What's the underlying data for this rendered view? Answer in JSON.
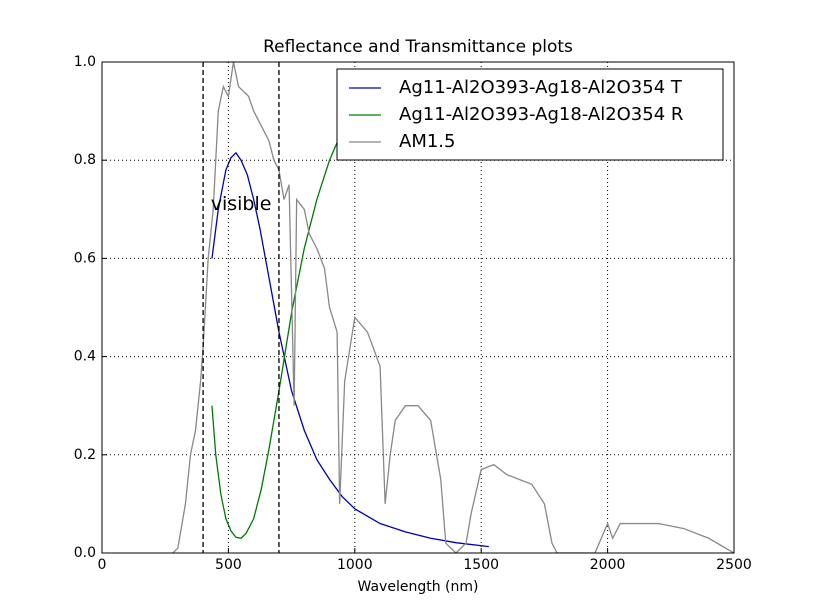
{
  "chart_data": {
    "type": "line",
    "title": "Reflectance and Transmittance plots",
    "x_label": "Wavelength (nm)",
    "xlim": [
      0,
      2500
    ],
    "xticks": [
      0,
      500,
      1000,
      1500,
      2000,
      2500
    ],
    "ylim": [
      0,
      1
    ],
    "yticks": [
      {
        "value": 0,
        "label": "0.0"
      },
      {
        "value": 0.2,
        "label": "0.2"
      },
      {
        "value": 0.4,
        "label": "0.4"
      },
      {
        "value": 0.6,
        "label": "0.6"
      },
      {
        "value": 0.8,
        "label": "0.8"
      },
      {
        "value": 1,
        "label": "1.0"
      }
    ],
    "grid": true,
    "legend": "upper right",
    "vlines": [
      400,
      700
    ],
    "annotation": {
      "text": "visible",
      "x": 430,
      "y": 0.71
    },
    "series": [
      {
        "name": "Ag11-Al2O393-Ag18-Al2O354 T",
        "color": "#0000b0",
        "x": [
          435,
          460,
          490,
          510,
          530,
          550,
          575,
          600,
          625,
          650,
          675,
          700,
          725,
          750,
          800,
          850,
          900,
          950,
          1000,
          1100,
          1200,
          1300,
          1400,
          1530
        ],
        "values": [
          0.6,
          0.7,
          0.78,
          0.805,
          0.815,
          0.8,
          0.77,
          0.72,
          0.66,
          0.59,
          0.52,
          0.45,
          0.39,
          0.33,
          0.25,
          0.19,
          0.15,
          0.115,
          0.09,
          0.06,
          0.043,
          0.03,
          0.021,
          0.013
        ]
      },
      {
        "name": "Ag11-Al2O393-Ag18-Al2O354 R",
        "color": "#007a00",
        "x": [
          435,
          450,
          470,
          490,
          510,
          530,
          550,
          570,
          600,
          630,
          660,
          700,
          750,
          800,
          850,
          900,
          950,
          1000,
          1100,
          1200,
          1300,
          1400,
          1530
        ],
        "values": [
          0.3,
          0.2,
          0.12,
          0.07,
          0.045,
          0.032,
          0.03,
          0.04,
          0.07,
          0.13,
          0.21,
          0.33,
          0.49,
          0.62,
          0.72,
          0.8,
          0.86,
          0.9,
          0.93,
          0.95,
          0.96,
          0.97,
          0.975
        ]
      },
      {
        "name": "AM1.5",
        "color": "#888888",
        "x": [
          280,
          300,
          330,
          350,
          370,
          390,
          400,
          420,
          440,
          460,
          480,
          500,
          520,
          540,
          560,
          580,
          600,
          620,
          660,
          680,
          700,
          720,
          740,
          760,
          770,
          800,
          820,
          850,
          880,
          900,
          930,
          940,
          960,
          1000,
          1050,
          1100,
          1120,
          1140,
          1160,
          1200,
          1250,
          1300,
          1340,
          1360,
          1400,
          1440,
          1460,
          1500,
          1550,
          1600,
          1700,
          1750,
          1780,
          1800,
          1950,
          2000,
          2020,
          2050,
          2100,
          2200,
          2300,
          2400,
          2500
        ],
        "values": [
          0,
          0.01,
          0.1,
          0.2,
          0.25,
          0.35,
          0.42,
          0.6,
          0.7,
          0.9,
          0.95,
          0.93,
          1.0,
          0.95,
          0.94,
          0.93,
          0.9,
          0.88,
          0.84,
          0.8,
          0.78,
          0.72,
          0.75,
          0.3,
          0.72,
          0.7,
          0.65,
          0.62,
          0.58,
          0.5,
          0.45,
          0.1,
          0.35,
          0.48,
          0.45,
          0.38,
          0.1,
          0.2,
          0.27,
          0.3,
          0.3,
          0.27,
          0.15,
          0.02,
          0,
          0.02,
          0.08,
          0.17,
          0.18,
          0.16,
          0.14,
          0.1,
          0.02,
          0,
          0,
          0.06,
          0.03,
          0.06,
          0.06,
          0.06,
          0.05,
          0.03,
          0
        ]
      }
    ]
  }
}
